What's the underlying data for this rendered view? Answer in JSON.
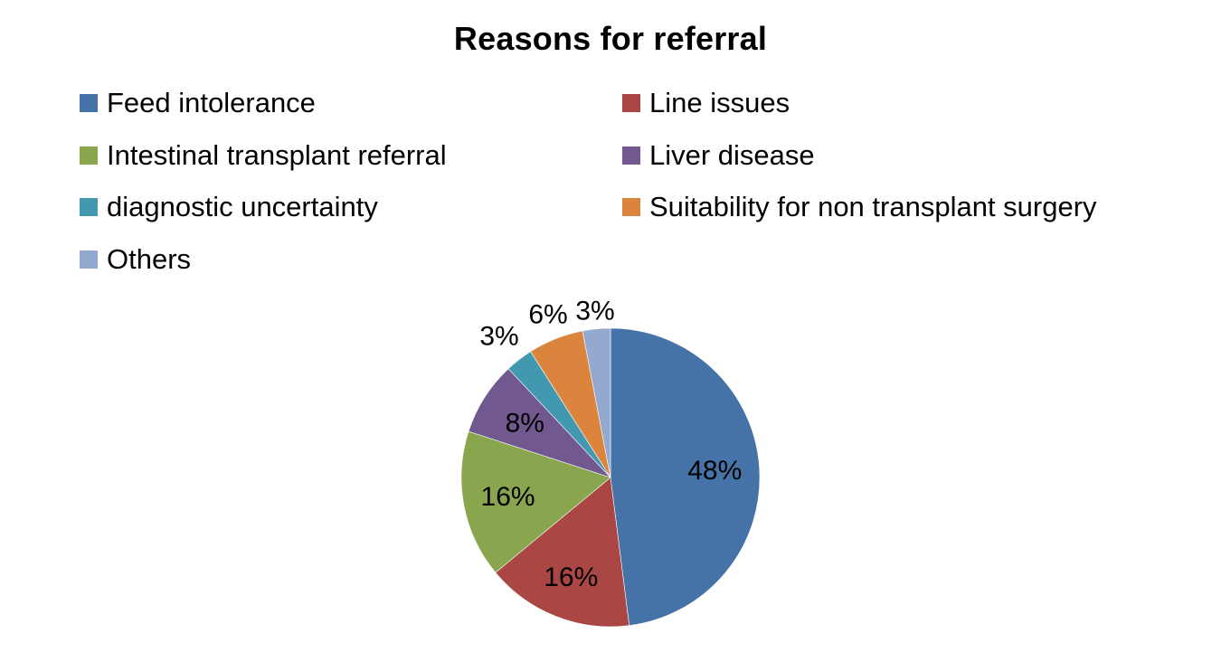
{
  "chart_data": {
    "type": "pie",
    "title": "Reasons for referral",
    "legend_position": "top",
    "slices": [
      {
        "label": "Feed intolerance",
        "value": 48,
        "display": "48%",
        "color": "#4572A7"
      },
      {
        "label": "Line issues",
        "value": 16,
        "display": "16%",
        "color": "#AA4643"
      },
      {
        "label": "Intestinal transplant referral",
        "value": 16,
        "display": "16%",
        "color": "#89A54E"
      },
      {
        "label": "Liver disease",
        "value": 8,
        "display": "8%",
        "color": "#71588F"
      },
      {
        "label": "diagnostic uncertainty",
        "value": 3,
        "display": "3%",
        "color": "#4198AF"
      },
      {
        "label": "Suitability for non transplant surgery",
        "value": 6,
        "display": "6%",
        "color": "#DB843D"
      },
      {
        "label": "Others",
        "value": 3,
        "display": "3%",
        "color": "#93A9CF"
      }
    ]
  }
}
